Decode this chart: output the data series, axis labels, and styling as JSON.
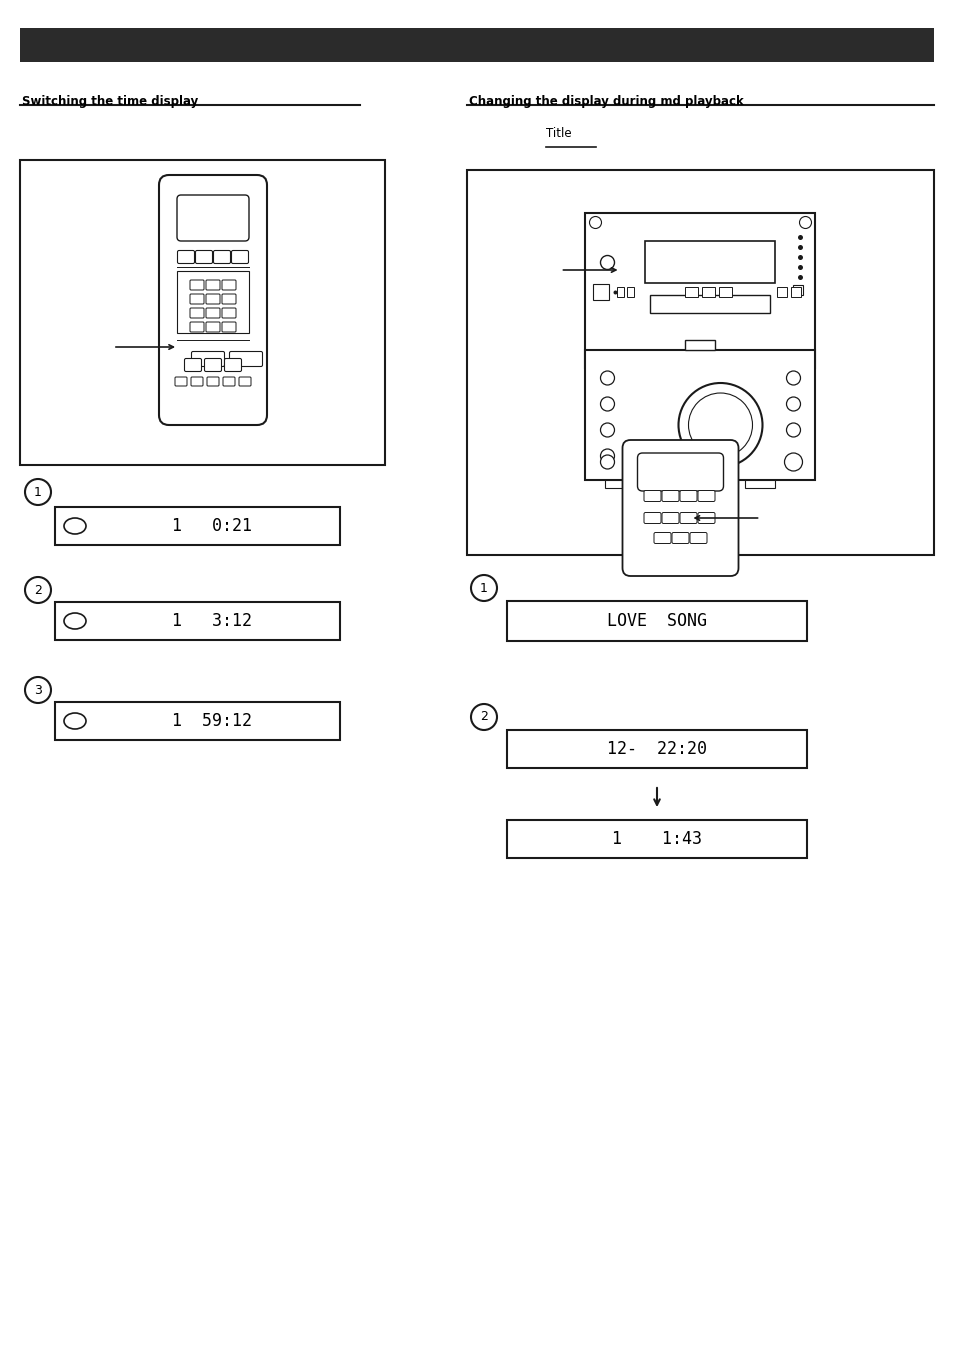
{
  "title_bar_color": "#2b2b2b",
  "background_color": "#ffffff",
  "text_color": "#000000",
  "dark_color": "#1a1a1a",
  "left_section_title": "Switching the time display",
  "right_section_title": "Changing the display during md playback",
  "right_subsection_label": "Title",
  "display_left": [
    "1   0:21",
    "1   3:12",
    "1  59:12"
  ],
  "display_right_1": "LOVE  SONG",
  "display_right_2": "12-  22:20",
  "display_right_3": "1    1:43"
}
